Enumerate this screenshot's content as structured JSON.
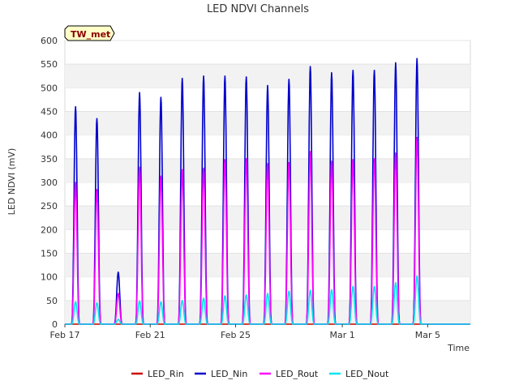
{
  "chart_data": {
    "type": "line",
    "title": "LED NDVI Channels",
    "xlabel": "Time",
    "ylabel": "LED NDVI (mV)",
    "badge": "TW_met",
    "ylim": [
      0,
      600
    ],
    "yticks": [
      0,
      50,
      100,
      150,
      200,
      250,
      300,
      350,
      400,
      450,
      500,
      550,
      600
    ],
    "xlim": [
      "2024-02-17",
      "2024-03-07"
    ],
    "xticks": [
      {
        "date": "2024-02-17",
        "label": "Feb 17"
      },
      {
        "date": "2024-02-21",
        "label": "Feb 21"
      },
      {
        "date": "2024-02-25",
        "label": "Feb 25"
      },
      {
        "date": "2024-03-01",
        "label": "Mar 1"
      },
      {
        "date": "2024-03-05",
        "label": "Mar 5"
      }
    ],
    "grid": "horizontal bands",
    "legend_position": "bottom",
    "daily_peak_dates": [
      "2024-02-17",
      "2024-02-18",
      "2024-02-19",
      "2024-02-20",
      "2024-02-21",
      "2024-02-22",
      "2024-02-23",
      "2024-02-24",
      "2024-02-25",
      "2024-02-26",
      "2024-02-27",
      "2024-02-28",
      "2024-02-29",
      "2024-03-01",
      "2024-03-02",
      "2024-03-03",
      "2024-03-04",
      "2024-03-05",
      "2024-03-06"
    ],
    "series": [
      {
        "name": "LED_Rin",
        "color": "#cc0000",
        "daily_peaks": [
          0,
          0,
          0,
          0,
          0,
          0,
          0,
          0,
          0,
          0,
          0,
          0,
          0,
          0,
          0,
          0,
          0,
          0,
          0
        ]
      },
      {
        "name": "LED_Nin",
        "color": "#0000cc",
        "daily_peaks": [
          460,
          435,
          110,
          490,
          480,
          520,
          525,
          525,
          523,
          505,
          518,
          545,
          532,
          537,
          537,
          553,
          562,
          0,
          0
        ]
      },
      {
        "name": "LED_Rout",
        "color": "#ff00ff",
        "daily_peaks": [
          300,
          285,
          65,
          332,
          313,
          327,
          330,
          348,
          350,
          340,
          342,
          365,
          345,
          348,
          350,
          362,
          395,
          0,
          0
        ]
      },
      {
        "name": "LED_Nout",
        "color": "#00e5ee",
        "daily_peaks": [
          47,
          45,
          10,
          49,
          47,
          50,
          55,
          60,
          62,
          65,
          70,
          72,
          73,
          80,
          80,
          88,
          102,
          0,
          0
        ]
      }
    ]
  }
}
